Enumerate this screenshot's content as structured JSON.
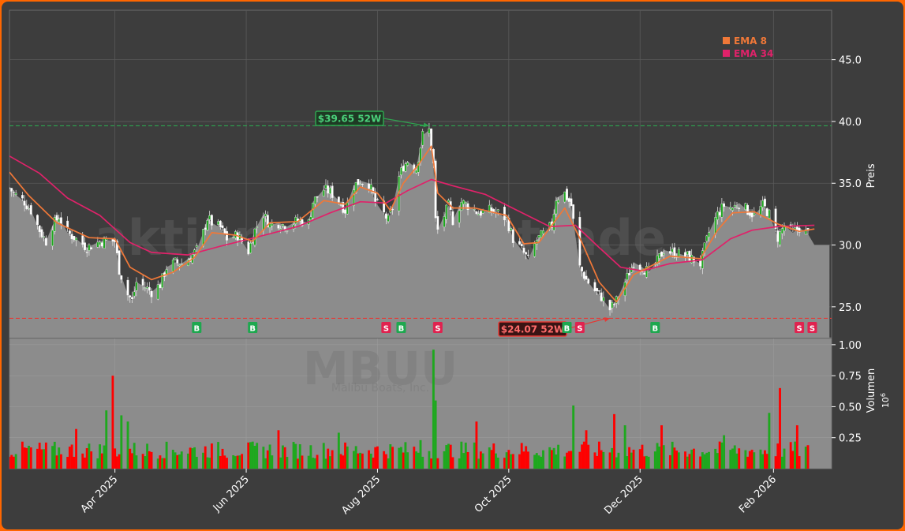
{
  "colors": {
    "frame_border": "#ff6600",
    "background": "#3d3d3d",
    "plot_area": "#8c8c8c",
    "up_candle": "#1ea81e",
    "down_candle": "#ff0000",
    "ema_fast": "#f07838",
    "ema_slow": "#e0226a",
    "high_line": "#2ea44f",
    "low_line": "#e53935",
    "buy_marker": "#1ea84f",
    "sell_marker": "#e0224f",
    "axis_text": "#ffffff",
    "watermark": "#707070"
  },
  "watermark": {
    "site": "aktienxsignale.trade",
    "ticker": "MBUU",
    "company": "Malibu Boats, Inc."
  },
  "chart_data": [
    {
      "type": "candlestick",
      "ticker": "MBUU",
      "ylabel": "Preis",
      "ylim": [
        22.5,
        49
      ],
      "yticks": [
        25.0,
        30.0,
        35.0,
        40.0,
        45.0
      ],
      "ytick_labels": [
        "25.0",
        "30.0",
        "35.0",
        "40.0",
        "45.0"
      ],
      "xlim": [
        "2025-02-11",
        "2026-02-28"
      ],
      "xticks": [
        "2025-04-01",
        "2025-06-01",
        "2025-08-01",
        "2025-10-01",
        "2025-12-01",
        "2026-02-01"
      ],
      "xtick_labels": [
        "Apr 2025",
        "Jun 2025",
        "Aug 2025",
        "Oct 2025",
        "Dec 2025",
        "Feb 2026"
      ],
      "grid": true,
      "legend": {
        "position": "top-right",
        "entries": [
          "EMA 8",
          "EMA 34"
        ]
      },
      "close_path": [
        [
          "2025-02-11",
          34.6
        ],
        [
          "2025-02-13",
          34.2
        ],
        [
          "2025-02-18",
          33.5
        ],
        [
          "2025-02-21",
          32.8
        ],
        [
          "2025-02-25",
          31.2
        ],
        [
          "2025-02-28",
          30.3
        ],
        [
          "2025-03-03",
          31.6
        ],
        [
          "2025-03-06",
          32.3
        ],
        [
          "2025-03-10",
          31.0
        ],
        [
          "2025-03-14",
          30.5
        ],
        [
          "2025-03-19",
          29.8
        ],
        [
          "2025-03-24",
          30.2
        ],
        [
          "2025-03-28",
          30.4
        ],
        [
          "2025-04-01",
          30.3
        ],
        [
          "2025-04-03",
          28.0
        ],
        [
          "2025-04-07",
          26.0
        ],
        [
          "2025-04-09",
          25.5
        ],
        [
          "2025-04-11",
          27.0
        ],
        [
          "2025-04-15",
          26.6
        ],
        [
          "2025-04-18",
          26.2
        ],
        [
          "2025-04-22",
          26.8
        ],
        [
          "2025-04-25",
          28.2
        ],
        [
          "2025-04-29",
          28.6
        ],
        [
          "2025-05-02",
          28.5
        ],
        [
          "2025-05-06",
          29.0
        ],
        [
          "2025-05-09",
          29.6
        ],
        [
          "2025-05-12",
          31.0
        ],
        [
          "2025-05-14",
          32.2
        ],
        [
          "2025-05-16",
          31.8
        ],
        [
          "2025-05-20",
          31.4
        ],
        [
          "2025-05-23",
          30.5
        ],
        [
          "2025-05-28",
          30.8
        ],
        [
          "2025-06-02",
          29.5
        ],
        [
          "2025-06-05",
          31.2
        ],
        [
          "2025-06-09",
          32.5
        ],
        [
          "2025-06-12",
          31.6
        ],
        [
          "2025-06-16",
          31.8
        ],
        [
          "2025-06-20",
          31.5
        ],
        [
          "2025-06-25",
          32.0
        ],
        [
          "2025-06-30",
          31.8
        ],
        [
          "2025-07-02",
          33.5
        ],
        [
          "2025-07-07",
          34.5
        ],
        [
          "2025-07-10",
          34.3
        ],
        [
          "2025-07-14",
          33.6
        ],
        [
          "2025-07-17",
          32.8
        ],
        [
          "2025-07-21",
          34.8
        ],
        [
          "2025-07-24",
          35.2
        ],
        [
          "2025-07-28",
          35.0
        ],
        [
          "2025-07-31",
          33.5
        ],
        [
          "2025-08-04",
          32.5
        ],
        [
          "2025-08-06",
          32.0
        ],
        [
          "2025-08-08",
          33.0
        ],
        [
          "2025-08-11",
          35.5
        ],
        [
          "2025-08-13",
          36.4
        ],
        [
          "2025-08-15",
          36.8
        ],
        [
          "2025-08-19",
          36.2
        ],
        [
          "2025-08-22",
          38.9
        ],
        [
          "2025-08-25",
          39.3
        ],
        [
          "2025-08-27",
          36.5
        ],
        [
          "2025-08-28",
          32.0
        ],
        [
          "2025-08-29",
          31.2
        ],
        [
          "2025-09-03",
          33.2
        ],
        [
          "2025-09-05",
          32.0
        ],
        [
          "2025-09-09",
          33.5
        ],
        [
          "2025-09-12",
          33.2
        ],
        [
          "2025-09-17",
          32.6
        ],
        [
          "2025-09-22",
          32.8
        ],
        [
          "2025-09-26",
          32.6
        ],
        [
          "2025-09-30",
          32.1
        ],
        [
          "2025-10-03",
          30.5
        ],
        [
          "2025-10-07",
          29.6
        ],
        [
          "2025-10-10",
          28.8
        ],
        [
          "2025-10-14",
          30.4
        ],
        [
          "2025-10-17",
          30.9
        ],
        [
          "2025-10-21",
          31.6
        ],
        [
          "2025-10-23",
          33.8
        ],
        [
          "2025-10-27",
          34.2
        ],
        [
          "2025-10-30",
          33.2
        ],
        [
          "2025-11-03",
          28.2
        ],
        [
          "2025-11-06",
          27.2
        ],
        [
          "2025-11-10",
          26.3
        ],
        [
          "2025-11-13",
          25.8
        ],
        [
          "2025-11-17",
          24.8
        ],
        [
          "2025-11-20",
          25.5
        ],
        [
          "2025-11-24",
          27.0
        ],
        [
          "2025-11-28",
          28.6
        ],
        [
          "2025-12-02",
          28.2
        ],
        [
          "2025-12-05",
          27.8
        ],
        [
          "2025-12-09",
          28.7
        ],
        [
          "2025-12-12",
          29.6
        ],
        [
          "2025-12-16",
          29.4
        ],
        [
          "2025-12-19",
          29.3
        ],
        [
          "2025-12-23",
          29.1
        ],
        [
          "2025-12-29",
          28.5
        ],
        [
          "2026-01-02",
          31.0
        ],
        [
          "2026-01-06",
          32.5
        ],
        [
          "2026-01-09",
          33.2
        ],
        [
          "2026-01-13",
          33.0
        ],
        [
          "2026-01-16",
          33.4
        ],
        [
          "2026-01-20",
          32.8
        ],
        [
          "2026-01-23",
          32.4
        ],
        [
          "2026-01-27",
          33.2
        ],
        [
          "2026-01-30",
          32.5
        ],
        [
          "2026-02-03",
          30.6
        ],
        [
          "2026-02-06",
          31.6
        ],
        [
          "2026-02-10",
          31.0
        ],
        [
          "2026-02-13",
          31.4
        ],
        [
          "2026-02-17",
          30.9
        ],
        [
          "2026-02-20",
          30.0
        ],
        [
          "2026-02-27",
          30.0
        ]
      ],
      "ema_8_path": [
        [
          "2025-02-11",
          35.9
        ],
        [
          "2025-02-20",
          34.0
        ],
        [
          "2025-03-05",
          31.8
        ],
        [
          "2025-03-20",
          30.6
        ],
        [
          "2025-04-01",
          30.5
        ],
        [
          "2025-04-08",
          28.2
        ],
        [
          "2025-04-18",
          27.2
        ],
        [
          "2025-04-28",
          27.8
        ],
        [
          "2025-05-08",
          29.0
        ],
        [
          "2025-05-16",
          31.0
        ],
        [
          "2025-05-27",
          30.8
        ],
        [
          "2025-06-04",
          30.3
        ],
        [
          "2025-06-12",
          31.8
        ],
        [
          "2025-06-25",
          31.9
        ],
        [
          "2025-07-07",
          33.6
        ],
        [
          "2025-07-17",
          33.3
        ],
        [
          "2025-07-24",
          34.7
        ],
        [
          "2025-08-01",
          34.2
        ],
        [
          "2025-08-07",
          32.8
        ],
        [
          "2025-08-13",
          35.0
        ],
        [
          "2025-08-20",
          36.5
        ],
        [
          "2025-08-26",
          38.0
        ],
        [
          "2025-08-29",
          34.2
        ],
        [
          "2025-09-05",
          33.0
        ],
        [
          "2025-09-15",
          33.0
        ],
        [
          "2025-09-30",
          32.4
        ],
        [
          "2025-10-08",
          30.1
        ],
        [
          "2025-10-15",
          30.2
        ],
        [
          "2025-10-27",
          33.0
        ],
        [
          "2025-11-04",
          30.2
        ],
        [
          "2025-11-12",
          27.0
        ],
        [
          "2025-11-20",
          25.4
        ],
        [
          "2025-11-28",
          27.6
        ],
        [
          "2025-12-05",
          28.2
        ],
        [
          "2025-12-15",
          29.1
        ],
        [
          "2025-12-29",
          28.9
        ],
        [
          "2026-01-06",
          31.2
        ],
        [
          "2026-01-13",
          32.6
        ],
        [
          "2026-01-23",
          32.7
        ],
        [
          "2026-02-03",
          31.7
        ],
        [
          "2026-02-13",
          31.1
        ],
        [
          "2026-02-20",
          31.3
        ]
      ],
      "ema_34_path": [
        [
          "2025-02-11",
          37.2
        ],
        [
          "2025-02-25",
          35.8
        ],
        [
          "2025-03-10",
          33.8
        ],
        [
          "2025-03-25",
          32.4
        ],
        [
          "2025-04-08",
          30.2
        ],
        [
          "2025-04-18",
          29.4
        ],
        [
          "2025-05-05",
          29.2
        ],
        [
          "2025-05-20",
          29.9
        ],
        [
          "2025-06-05",
          30.6
        ],
        [
          "2025-06-25",
          31.5
        ],
        [
          "2025-07-10",
          32.6
        ],
        [
          "2025-07-24",
          33.5
        ],
        [
          "2025-08-05",
          33.4
        ],
        [
          "2025-08-15",
          34.4
        ],
        [
          "2025-08-26",
          35.3
        ],
        [
          "2025-09-05",
          34.8
        ],
        [
          "2025-09-20",
          34.1
        ],
        [
          "2025-10-05",
          32.8
        ],
        [
          "2025-10-20",
          31.5
        ],
        [
          "2025-11-01",
          31.6
        ],
        [
          "2025-11-12",
          29.8
        ],
        [
          "2025-11-22",
          28.2
        ],
        [
          "2025-12-02",
          27.9
        ],
        [
          "2025-12-15",
          28.5
        ],
        [
          "2025-12-30",
          28.8
        ],
        [
          "2026-01-12",
          30.5
        ],
        [
          "2026-01-22",
          31.2
        ],
        [
          "2026-02-03",
          31.5
        ],
        [
          "2026-02-20",
          31.6
        ]
      ],
      "reference_lines": [
        {
          "kind": "high",
          "value": 39.65,
          "label": "$39.65 52W",
          "date": "2025-08-25"
        },
        {
          "kind": "low",
          "value": 24.07,
          "label": "$24.07 52W",
          "date": "2025-11-17"
        }
      ],
      "signals": [
        {
          "date": "2025-05-09",
          "type": "B"
        },
        {
          "date": "2025-06-04",
          "type": "B"
        },
        {
          "date": "2025-08-05",
          "type": "S"
        },
        {
          "date": "2025-08-12",
          "type": "B"
        },
        {
          "date": "2025-08-29",
          "type": "S"
        },
        {
          "date": "2025-10-28",
          "type": "B"
        },
        {
          "date": "2025-11-03",
          "type": "S"
        },
        {
          "date": "2025-12-08",
          "type": "B"
        },
        {
          "date": "2026-02-13",
          "type": "S"
        },
        {
          "date": "2026-02-19",
          "type": "S"
        }
      ]
    },
    {
      "type": "bar",
      "ylabel": "Volumen",
      "scale_label": "10^6",
      "ylim": [
        0,
        1.05
      ],
      "yticks": [
        0.25,
        0.5,
        0.75,
        1.0
      ],
      "ytick_labels": [
        "0.25",
        "0.50",
        "0.75",
        "1.00"
      ],
      "unit": "millions",
      "volume_spikes": [
        {
          "date": "2025-03-14",
          "value": 0.32,
          "dir": "down"
        },
        {
          "date": "2025-03-28",
          "value": 0.47,
          "dir": "up"
        },
        {
          "date": "2025-03-31",
          "value": 0.75,
          "dir": "down"
        },
        {
          "date": "2025-04-04",
          "value": 0.43,
          "dir": "up"
        },
        {
          "date": "2025-04-07",
          "value": 0.38,
          "dir": "up"
        },
        {
          "date": "2025-06-16",
          "value": 0.31,
          "dir": "down"
        },
        {
          "date": "2025-07-14",
          "value": 0.29,
          "dir": "up"
        },
        {
          "date": "2025-08-21",
          "value": 0.23,
          "dir": "up"
        },
        {
          "date": "2025-08-27",
          "value": 0.96,
          "dir": "up"
        },
        {
          "date": "2025-08-28",
          "value": 0.55,
          "dir": "up"
        },
        {
          "date": "2025-09-16",
          "value": 0.38,
          "dir": "down"
        },
        {
          "date": "2025-10-31",
          "value": 0.51,
          "dir": "up"
        },
        {
          "date": "2025-11-06",
          "value": 0.31,
          "dir": "down"
        },
        {
          "date": "2025-11-19",
          "value": 0.44,
          "dir": "down"
        },
        {
          "date": "2025-11-24",
          "value": 0.35,
          "dir": "up"
        },
        {
          "date": "2025-12-11",
          "value": 0.35,
          "dir": "down"
        },
        {
          "date": "2026-01-09",
          "value": 0.27,
          "dir": "up"
        },
        {
          "date": "2026-01-30",
          "value": 0.45,
          "dir": "up"
        },
        {
          "date": "2026-02-04",
          "value": 0.65,
          "dir": "down"
        },
        {
          "date": "2026-02-12",
          "value": 0.35,
          "dir": "down"
        }
      ],
      "typical_range": [
        0.08,
        0.22
      ]
    }
  ]
}
